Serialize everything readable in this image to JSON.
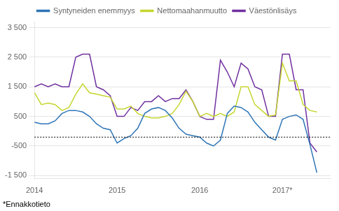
{
  "chart_data": {
    "type": "line",
    "x": [
      2014,
      2014.0833333333333,
      2014.1666666666667,
      2014.25,
      2014.3333333333333,
      2014.4166666666667,
      2014.5,
      2014.5833333333333,
      2014.6666666666667,
      2014.75,
      2014.8333333333333,
      2014.9166666666667,
      2015,
      2015.0833333333333,
      2015.1666666666667,
      2015.25,
      2015.3333333333333,
      2015.4166666666667,
      2015.5,
      2015.5833333333333,
      2015.6666666666667,
      2015.75,
      2015.8333333333333,
      2015.9166666666667,
      2016,
      2016.0833333333333,
      2016.1666666666667,
      2016.25,
      2016.3333333333333,
      2016.4166666666667,
      2016.5,
      2016.5833333333333,
      2016.6666666666667,
      2016.75,
      2016.8333333333333,
      2016.9166666666667,
      2017,
      2017.0833333333333,
      2017.1666666666667,
      2017.25,
      2017.3333333333333,
      2017.4166666666667
    ],
    "series": [
      {
        "name": "Syntyneiden enemmyys",
        "color": "#2e75b6",
        "values": [
          300,
          250,
          250,
          350,
          600,
          700,
          700,
          650,
          500,
          250,
          100,
          50,
          -400,
          -250,
          -150,
          100,
          600,
          750,
          800,
          700,
          450,
          100,
          -100,
          -150,
          -200,
          -400,
          -500,
          -300,
          600,
          850,
          800,
          650,
          300,
          50,
          -200,
          -300,
          400,
          500,
          550,
          400,
          -450,
          -1400
        ]
      },
      {
        "name": "Nettomaahanmuutto",
        "color": "#c5d62f",
        "values": [
          1300,
          900,
          950,
          900,
          700,
          800,
          1250,
          1600,
          1300,
          1250,
          1200,
          1150,
          750,
          750,
          850,
          600,
          500,
          450,
          450,
          500,
          600,
          900,
          1350,
          1000,
          500,
          600,
          500,
          600,
          500,
          650,
          1500,
          1500,
          900,
          700,
          500,
          550,
          2300,
          1700,
          1700,
          900,
          700,
          650
        ]
      },
      {
        "name": "Väestönlisäys",
        "color": "#7030a0",
        "values": [
          1500,
          1600,
          1500,
          1600,
          1500,
          1500,
          2500,
          2600,
          2600,
          1500,
          1400,
          1200,
          500,
          500,
          800,
          700,
          1000,
          1000,
          1200,
          1000,
          1100,
          1100,
          1400,
          1000,
          500,
          400,
          400,
          2400,
          2000,
          1500,
          2300,
          2100,
          1500,
          1400,
          500,
          500,
          2600,
          2600,
          1400,
          1400,
          -400,
          -700
        ]
      }
    ],
    "hline": -200,
    "footnote": "*Ennakkotieto",
    "xlim": [
      2014.0,
      2017.583
    ],
    "xticks": [
      2014,
      2015,
      2016,
      {
        "value": 2017,
        "label": "2017*"
      }
    ],
    "ylim": [
      -1600,
      3700
    ],
    "yticks": [
      {
        "value": -1500,
        "label": "-1 500"
      },
      -500,
      500,
      {
        "value": 1500,
        "label": "1 500"
      },
      {
        "value": 2500,
        "label": "2 500"
      },
      {
        "value": 3500,
        "label": "3 500"
      }
    ],
    "grid": "y",
    "legend": "top"
  }
}
